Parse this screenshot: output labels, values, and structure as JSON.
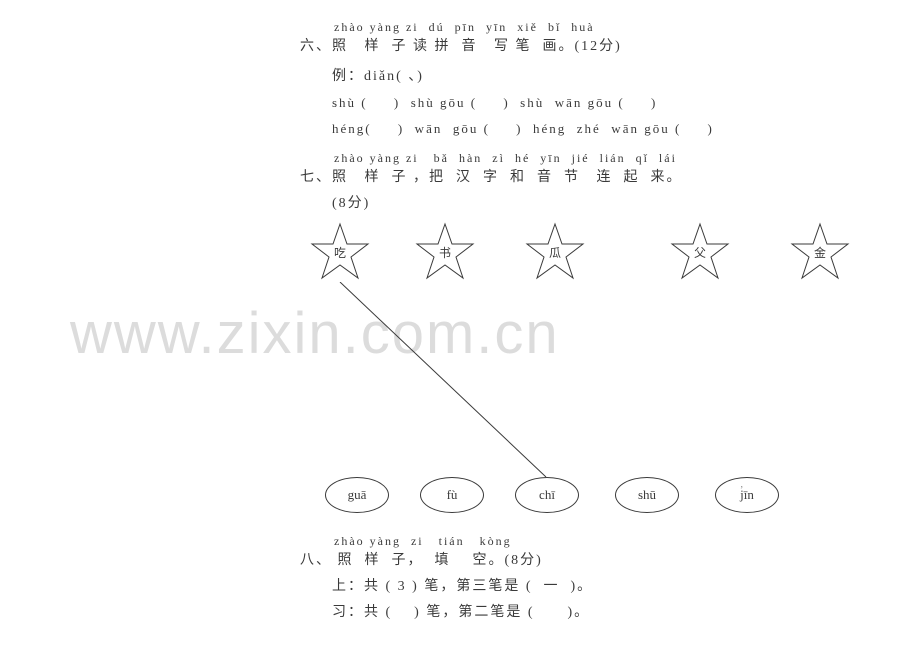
{
  "section6": {
    "pinyin": "zhào yàng zi  dú  pīn  yīn  xiě  bǐ  huà",
    "heading": "六、照   样  子 读 拼  音   写 笔  画。(12分)",
    "example": "例：diǎn( 、)",
    "row1": "shù (     )  shù gōu (     )  shù  wān gōu (     )",
    "row2": "héng(     )  wān  gōu (     )  héng  zhé  wān gōu (     )"
  },
  "section7": {
    "pinyin": "zhào yàng zi   bǎ  hàn  zì  hé  yīn  jié  lián  qǐ  lái",
    "heading": "七、照   样  子 ，把  汉  字  和  音  节   连  起  来。",
    "points": "(8分)",
    "stars": [
      "吃",
      "书",
      "瓜",
      "父",
      "金"
    ],
    "ovals": [
      "guā",
      "fù",
      "chī",
      "shū",
      "jīn"
    ],
    "star_x": [
      10,
      115,
      225,
      370,
      490
    ],
    "oval_x": [
      25,
      120,
      215,
      315,
      415
    ],
    "star_color": "#3a3a3a",
    "oval_color": "#3a3a3a",
    "line_color": "#3a3a3a"
  },
  "section8": {
    "pinyin": "zhào yàng  zi   tián   kòng",
    "heading": "八、 照  样  子，  填    空。(8分)",
    "line1": "上：共 ( 3 ) 笔，第三笔是 (  一  )。",
    "line2": "习：共 (    ) 笔，第二笔是 (      )。"
  },
  "watermark": "www.zixin.com.cn",
  "small_mark": "’"
}
